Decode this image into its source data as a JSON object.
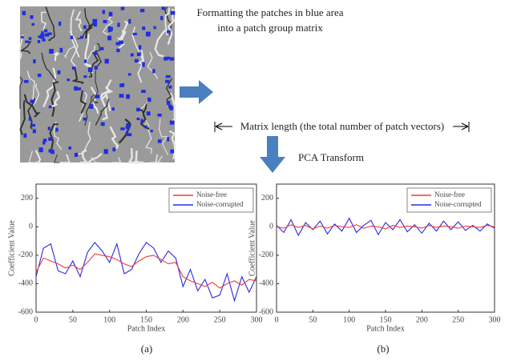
{
  "figure": {
    "caption_lines": [
      "Formatting the patches in blue area",
      "into a patch group matrix"
    ],
    "matrix_length": "Matrix length (the total number of patch vectors)",
    "pca": "PCA Transform",
    "panels": [
      "(a)",
      "(b)"
    ]
  },
  "chart_data": [
    {
      "type": "line",
      "x_label": "Patch Index",
      "y_label": "Coefficient Value",
      "x": [
        0,
        10,
        20,
        30,
        40,
        50,
        60,
        70,
        80,
        90,
        100,
        110,
        120,
        130,
        140,
        150,
        160,
        170,
        180,
        190,
        200,
        210,
        220,
        230,
        240,
        250,
        260,
        270,
        280,
        290,
        300
      ],
      "series": [
        {
          "name": "Noise-free",
          "color": "#ee3b3b",
          "values": [
            -320,
            -220,
            -240,
            -260,
            -290,
            -270,
            -300,
            -250,
            -190,
            -200,
            -210,
            -230,
            -260,
            -280,
            -240,
            -210,
            -200,
            -230,
            -260,
            -250,
            -350,
            -380,
            -400,
            -420,
            -390,
            -430,
            -400,
            -380,
            -410,
            -370,
            -380
          ]
        },
        {
          "name": "Noise-corrupted",
          "color": "#2a2ae0",
          "values": [
            -350,
            -150,
            -120,
            -310,
            -330,
            -240,
            -350,
            -180,
            -110,
            -170,
            -250,
            -120,
            -330,
            -300,
            -190,
            -110,
            -150,
            -250,
            -170,
            -220,
            -420,
            -300,
            -450,
            -370,
            -500,
            -480,
            -330,
            -520,
            -350,
            -460,
            -350
          ]
        }
      ],
      "xlim": [
        0,
        300
      ],
      "xticks": [
        0,
        50,
        100,
        150,
        200,
        250,
        300
      ],
      "ylim": [
        -600,
        300
      ],
      "yticks": [
        -600,
        -400,
        -200,
        0,
        200
      ],
      "legend": "upper right"
    },
    {
      "type": "line",
      "x_label": "Patch Index",
      "y_label": "Coefficient Value",
      "x": [
        0,
        10,
        20,
        30,
        40,
        50,
        60,
        70,
        80,
        90,
        100,
        110,
        120,
        130,
        140,
        150,
        160,
        170,
        180,
        190,
        200,
        210,
        220,
        230,
        240,
        250,
        260,
        270,
        280,
        290,
        300
      ],
      "series": [
        {
          "name": "Noise-free",
          "color": "#ee3b3b",
          "values": [
            0,
            -10,
            15,
            -5,
            10,
            -15,
            5,
            -10,
            10,
            0,
            -5,
            15,
            -10,
            5,
            0,
            -15,
            10,
            -5,
            5,
            0,
            -10,
            10,
            -5,
            5,
            0,
            -10,
            5,
            0,
            -5,
            10,
            0
          ]
        },
        {
          "name": "Noise-corrupted",
          "color": "#2a2ae0",
          "values": [
            10,
            -40,
            50,
            -60,
            30,
            -20,
            40,
            -50,
            20,
            -30,
            60,
            -40,
            10,
            45,
            -55,
            30,
            -20,
            50,
            -35,
            15,
            -45,
            25,
            -30,
            40,
            -20,
            35,
            -25,
            10,
            -30,
            20,
            -10
          ]
        }
      ],
      "xlim": [
        0,
        300
      ],
      "xticks": [
        0,
        50,
        100,
        150,
        200,
        250,
        300
      ],
      "ylim": [
        -600,
        300
      ],
      "yticks": [
        -600,
        -400,
        -200,
        0,
        200
      ],
      "legend": "upper right"
    }
  ]
}
